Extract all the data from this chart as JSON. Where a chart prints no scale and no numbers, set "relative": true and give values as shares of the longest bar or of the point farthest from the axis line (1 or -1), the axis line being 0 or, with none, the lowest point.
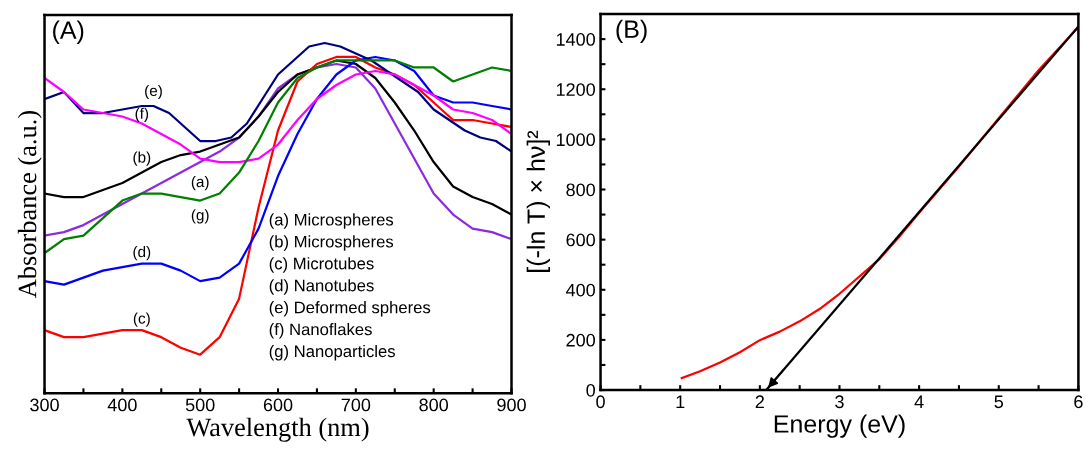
{
  "chart_data": [
    {
      "type": "line",
      "title": "(A)",
      "xlabel": "Wavelength (nm)",
      "ylabel": "Absorbance (a.u.)",
      "relative": true,
      "tick_labels": "x",
      "xlim": [
        300,
        900
      ],
      "xticks": [
        300,
        {
          "value": 350,
          "label": null
        },
        400,
        {
          "value": 450,
          "label": null
        },
        500,
        {
          "value": 550,
          "label": null
        },
        600,
        {
          "value": 650,
          "label": null
        },
        700,
        {
          "value": 750,
          "label": null
        },
        800,
        {
          "value": 850,
          "label": null
        },
        900
      ],
      "x": [
        300,
        325,
        350,
        375,
        400,
        425,
        450,
        475,
        500,
        525,
        550,
        575,
        600,
        625,
        650,
        675,
        700,
        725,
        750,
        775,
        800,
        825,
        850,
        875,
        900
      ],
      "series": [
        {
          "name": "(a)",
          "color": "#8a2be2",
          "values": [
            0.45,
            0.46,
            0.48,
            0.51,
            0.54,
            0.57,
            0.6,
            0.63,
            0.66,
            0.69,
            0.73,
            0.79,
            0.87,
            0.91,
            0.93,
            0.94,
            0.93,
            0.87,
            0.77,
            0.67,
            0.57,
            0.51,
            0.47,
            0.46,
            0.44
          ]
        },
        {
          "name": "(b)",
          "color": "#000000",
          "values": [
            0.57,
            0.56,
            0.56,
            0.58,
            0.6,
            0.63,
            0.66,
            0.68,
            0.69,
            0.71,
            0.73,
            0.79,
            0.86,
            0.91,
            0.93,
            0.95,
            0.94,
            0.9,
            0.83,
            0.75,
            0.66,
            0.59,
            0.56,
            0.54,
            0.51
          ]
        },
        {
          "name": "(c)",
          "color": "#ff0000",
          "values": [
            0.18,
            0.16,
            0.16,
            0.17,
            0.18,
            0.18,
            0.16,
            0.13,
            0.11,
            0.16,
            0.27,
            0.53,
            0.75,
            0.89,
            0.94,
            0.96,
            0.96,
            0.93,
            0.91,
            0.88,
            0.83,
            0.78,
            0.78,
            0.77,
            0.76
          ]
        },
        {
          "name": "(d)",
          "color": "#0000ff",
          "values": [
            0.32,
            0.31,
            0.33,
            0.35,
            0.36,
            0.37,
            0.37,
            0.35,
            0.32,
            0.33,
            0.37,
            0.47,
            0.62,
            0.74,
            0.84,
            0.91,
            0.95,
            0.96,
            0.95,
            0.92,
            0.85,
            0.83,
            0.83,
            0.82,
            0.81
          ]
        },
        {
          "name": "(e)",
          "color": "#000080",
          "x": [
            300,
            325,
            350,
            375,
            400,
            425,
            440,
            460,
            480,
            500,
            520,
            540,
            560,
            580,
            600,
            620,
            640,
            660,
            680,
            700,
            720,
            740,
            760,
            780,
            800,
            820,
            840,
            860,
            880,
            900
          ],
          "values": [
            0.84,
            0.86,
            0.8,
            0.8,
            0.81,
            0.82,
            0.82,
            0.8,
            0.76,
            0.72,
            0.72,
            0.73,
            0.77,
            0.84,
            0.91,
            0.95,
            0.99,
            1.0,
            0.99,
            0.97,
            0.95,
            0.92,
            0.89,
            0.86,
            0.81,
            0.78,
            0.75,
            0.73,
            0.72,
            0.69
          ]
        },
        {
          "name": "(f)",
          "color": "#ff00ff",
          "values": [
            0.9,
            0.86,
            0.81,
            0.8,
            0.79,
            0.77,
            0.74,
            0.71,
            0.67,
            0.66,
            0.66,
            0.67,
            0.71,
            0.78,
            0.84,
            0.88,
            0.91,
            0.92,
            0.91,
            0.88,
            0.85,
            0.81,
            0.8,
            0.78,
            0.74
          ]
        },
        {
          "name": "(g)",
          "color": "#008000",
          "values": [
            0.4,
            0.44,
            0.45,
            0.5,
            0.55,
            0.57,
            0.57,
            0.56,
            0.55,
            0.57,
            0.63,
            0.72,
            0.83,
            0.9,
            0.93,
            0.95,
            0.95,
            0.95,
            0.95,
            0.93,
            0.93,
            0.89,
            0.91,
            0.93,
            0.92
          ]
        }
      ],
      "annotations": [
        "(a) Microspheres",
        "(b) Microspheres",
        "(c) Microtubes",
        "(d) Nanotubes",
        "(e) Deformed spheres",
        "(f) Nanoflakes",
        "(g) Nanoparticles"
      ]
    },
    {
      "type": "line",
      "title": "(B)",
      "xlabel": "Energy (eV)",
      "ylabel": "[(-ln T) × hν]²",
      "xlim": [
        0,
        6
      ],
      "ylim": [
        0,
        1500
      ],
      "xticks": [
        0,
        {
          "value": 0.5,
          "label": null
        },
        1,
        {
          "value": 1.5,
          "label": null
        },
        2,
        {
          "value": 2.5,
          "label": null
        },
        3,
        {
          "value": 3.5,
          "label": null
        },
        4,
        {
          "value": 4.5,
          "label": null
        },
        5,
        {
          "value": 5.5,
          "label": null
        },
        6
      ],
      "yticks": [
        0,
        {
          "value": 100,
          "label": null
        },
        200,
        {
          "value": 300,
          "label": null
        },
        400,
        {
          "value": 500,
          "label": null
        },
        600,
        {
          "value": 700,
          "label": null
        },
        800,
        {
          "value": 900,
          "label": null
        },
        1000,
        {
          "value": 1100,
          "label": null
        },
        1200,
        {
          "value": 1300,
          "label": null
        },
        1400
      ],
      "series": [
        {
          "color": "#ff0000",
          "x": [
            1.02,
            1.25,
            1.5,
            1.75,
            2.0,
            2.25,
            2.5,
            2.75,
            3.0,
            3.25,
            3.5,
            3.75,
            4.0,
            4.5,
            5.0,
            5.5,
            6.0
          ],
          "values": [
            48,
            75,
            110,
            151,
            199,
            233,
            274,
            323,
            384,
            453,
            522,
            611,
            707,
            892,
            1084,
            1276,
            1448
          ]
        },
        {
          "color": "#000000",
          "x": [
            2.08,
            6.0
          ],
          "values": [
            0,
            1450
          ]
        }
      ]
    }
  ]
}
